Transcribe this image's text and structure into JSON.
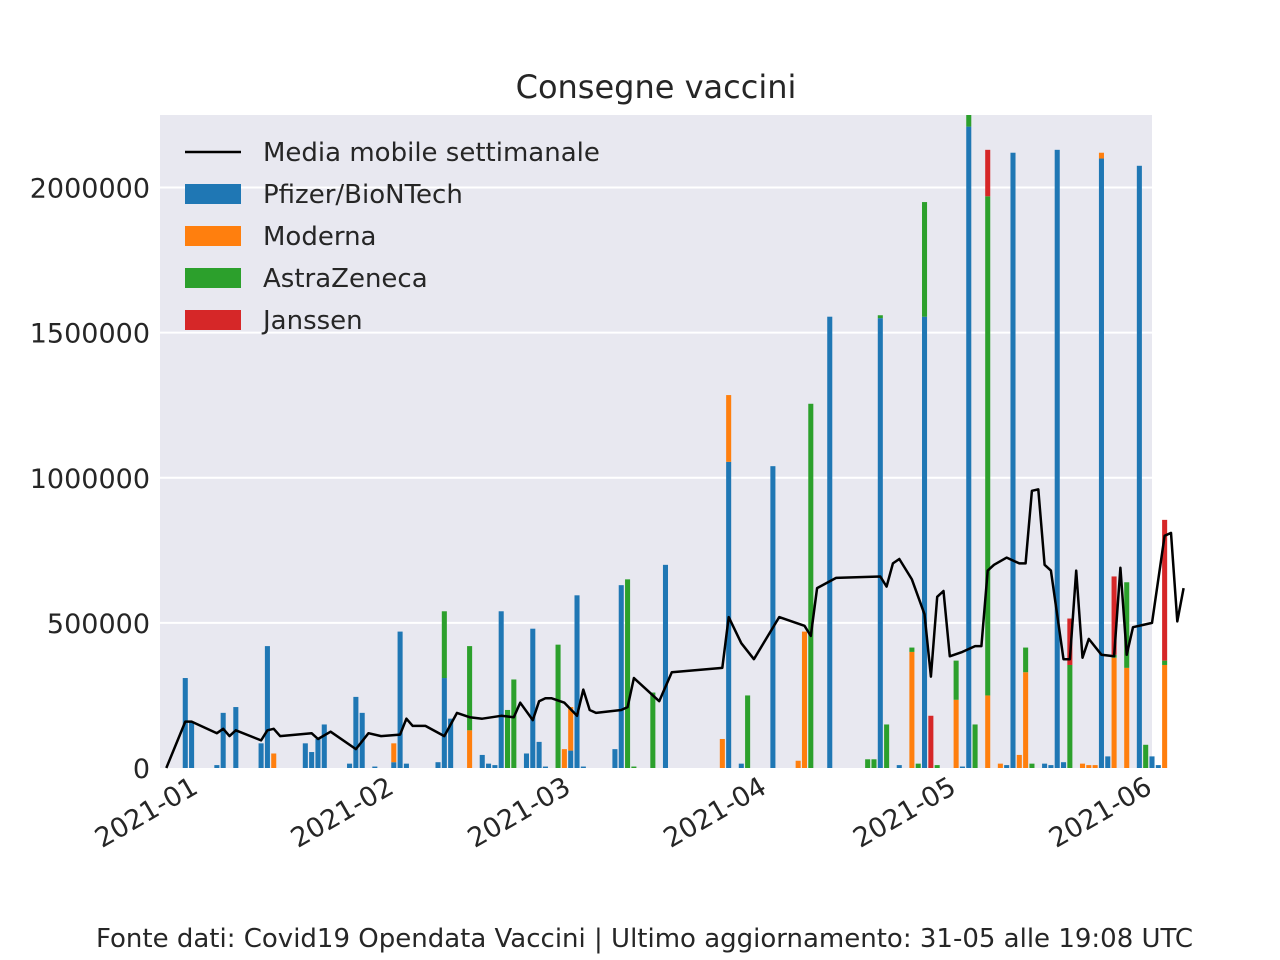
{
  "chart_data": {
    "type": "bar",
    "stacked": true,
    "title": "Consegne vaccini",
    "xlabel": "",
    "ylabel": "",
    "x_start": "2020-12-27",
    "x_end": "2021-06-02",
    "x_ticks": [
      "2021-01-01",
      "2021-02-01",
      "2021-03-01",
      "2021-04-01",
      "2021-05-01",
      "2021-06-01"
    ],
    "x_tick_labels": [
      "2021-01",
      "2021-02",
      "2021-03",
      "2021-04",
      "2021-05",
      "2021-06"
    ],
    "ylim": [
      0,
      2250000
    ],
    "y_ticks": [
      0,
      500000,
      1000000,
      1500000,
      2000000
    ],
    "y_tick_labels": [
      "0",
      "500000",
      "1000000",
      "1500000",
      "2000000"
    ],
    "grid": true,
    "legend_position": "top-left",
    "colors": {
      "Pfizer/BioNTech": "#1f77b4",
      "Moderna": "#ff7f0e",
      "AstraZeneca": "#2ca02c",
      "Janssen": "#d62728",
      "Media mobile settimanale": "#000000",
      "background": "#e8e8f0"
    },
    "legend": [
      {
        "label": "Media mobile settimanale",
        "kind": "line"
      },
      {
        "label": "Pfizer/BioNTech",
        "kind": "bar"
      },
      {
        "label": "Moderna",
        "kind": "bar"
      },
      {
        "label": "AstraZeneca",
        "kind": "bar"
      },
      {
        "label": "Janssen",
        "kind": "bar"
      }
    ],
    "bars": [
      {
        "date": "2020-12-31",
        "Pfizer/BioNTech": 310000
      },
      {
        "date": "2021-01-01",
        "Pfizer/BioNTech": 160000
      },
      {
        "date": "2021-01-05",
        "Pfizer/BioNTech": 10000
      },
      {
        "date": "2021-01-06",
        "Pfizer/BioNTech": 190000
      },
      {
        "date": "2021-01-08",
        "Pfizer/BioNTech": 210000
      },
      {
        "date": "2021-01-12",
        "Pfizer/BioNTech": 85000
      },
      {
        "date": "2021-01-13",
        "Pfizer/BioNTech": 420000
      },
      {
        "date": "2021-01-14",
        "Moderna": 50000
      },
      {
        "date": "2021-01-19",
        "Pfizer/BioNTech": 85000
      },
      {
        "date": "2021-01-20",
        "Pfizer/BioNTech": 55000
      },
      {
        "date": "2021-01-21",
        "Pfizer/BioNTech": 100000
      },
      {
        "date": "2021-01-22",
        "Pfizer/BioNTech": 150000
      },
      {
        "date": "2021-01-26",
        "Pfizer/BioNTech": 15000
      },
      {
        "date": "2021-01-27",
        "Pfizer/BioNTech": 245000
      },
      {
        "date": "2021-01-28",
        "Pfizer/BioNTech": 190000
      },
      {
        "date": "2021-01-30",
        "Pfizer/BioNTech": 5000
      },
      {
        "date": "2021-02-02",
        "Pfizer/BioNTech": 20000,
        "Moderna": 65000
      },
      {
        "date": "2021-02-03",
        "Pfizer/BioNTech": 470000
      },
      {
        "date": "2021-02-04",
        "Pfizer/BioNTech": 15000
      },
      {
        "date": "2021-02-09",
        "Pfizer/BioNTech": 20000
      },
      {
        "date": "2021-02-10",
        "Pfizer/BioNTech": 310000,
        "AstraZeneca": 230000
      },
      {
        "date": "2021-02-11",
        "Pfizer/BioNTech": 170000
      },
      {
        "date": "2021-02-14",
        "Moderna": 130000,
        "AstraZeneca": 290000
      },
      {
        "date": "2021-02-16",
        "Pfizer/BioNTech": 45000
      },
      {
        "date": "2021-02-17",
        "Pfizer/BioNTech": 15000
      },
      {
        "date": "2021-02-18",
        "Pfizer/BioNTech": 10000
      },
      {
        "date": "2021-02-19",
        "Pfizer/BioNTech": 540000
      },
      {
        "date": "2021-02-20",
        "AstraZeneca": 200000
      },
      {
        "date": "2021-02-21",
        "AstraZeneca": 305000
      },
      {
        "date": "2021-02-23",
        "Pfizer/BioNTech": 50000
      },
      {
        "date": "2021-02-24",
        "Pfizer/BioNTech": 480000
      },
      {
        "date": "2021-02-25",
        "Pfizer/BioNTech": 90000
      },
      {
        "date": "2021-02-26",
        "Pfizer/BioNTech": 5000
      },
      {
        "date": "2021-02-28",
        "AstraZeneca": 425000
      },
      {
        "date": "2021-03-01",
        "Moderna": 65000
      },
      {
        "date": "2021-03-02",
        "Pfizer/BioNTech": 60000,
        "Moderna": 150000
      },
      {
        "date": "2021-03-03",
        "Pfizer/BioNTech": 595000
      },
      {
        "date": "2021-03-04",
        "Pfizer/BioNTech": 5000
      },
      {
        "date": "2021-03-09",
        "Pfizer/BioNTech": 65000
      },
      {
        "date": "2021-03-10",
        "Pfizer/BioNTech": 630000
      },
      {
        "date": "2021-03-11",
        "AstraZeneca": 650000
      },
      {
        "date": "2021-03-12",
        "AstraZeneca": 5000
      },
      {
        "date": "2021-03-15",
        "AstraZeneca": 260000
      },
      {
        "date": "2021-03-17",
        "Pfizer/BioNTech": 700000
      },
      {
        "date": "2021-03-26",
        "Moderna": 100000
      },
      {
        "date": "2021-03-27",
        "Pfizer/BioNTech": 1055000,
        "Moderna": 230000
      },
      {
        "date": "2021-03-29",
        "Pfizer/BioNTech": 15000
      },
      {
        "date": "2021-03-30",
        "AstraZeneca": 250000
      },
      {
        "date": "2021-04-03",
        "Pfizer/BioNTech": 1040000
      },
      {
        "date": "2021-04-07",
        "Moderna": 25000
      },
      {
        "date": "2021-04-08",
        "Moderna": 470000
      },
      {
        "date": "2021-04-09",
        "AstraZeneca": 1255000
      },
      {
        "date": "2021-04-12",
        "Pfizer/BioNTech": 1555000
      },
      {
        "date": "2021-04-18",
        "AstraZeneca": 30000
      },
      {
        "date": "2021-04-19",
        "AstraZeneca": 30000
      },
      {
        "date": "2021-04-20",
        "Pfizer/BioNTech": 1550000,
        "AstraZeneca": 10000
      },
      {
        "date": "2021-04-21",
        "AstraZeneca": 150000
      },
      {
        "date": "2021-04-23",
        "Pfizer/BioNTech": 10000
      },
      {
        "date": "2021-04-25",
        "Moderna": 400000,
        "AstraZeneca": 15000
      },
      {
        "date": "2021-04-26",
        "AstraZeneca": 15000
      },
      {
        "date": "2021-04-27",
        "Pfizer/BioNTech": 1555000,
        "AstraZeneca": 395000
      },
      {
        "date": "2021-04-28",
        "Janssen": 180000
      },
      {
        "date": "2021-04-29",
        "AstraZeneca": 10000
      },
      {
        "date": "2021-05-02",
        "Moderna": 235000,
        "AstraZeneca": 135000
      },
      {
        "date": "2021-05-03",
        "Pfizer/BioNTech": 5000
      },
      {
        "date": "2021-05-04",
        "Pfizer/BioNTech": 2210000,
        "AstraZeneca": 40000
      },
      {
        "date": "2021-05-05",
        "AstraZeneca": 150000
      },
      {
        "date": "2021-05-07",
        "Moderna": 250000,
        "AstraZeneca": 1720000,
        "Janssen": 160000
      },
      {
        "date": "2021-05-09",
        "Moderna": 15000
      },
      {
        "date": "2021-05-10",
        "Pfizer/BioNTech": 10000
      },
      {
        "date": "2021-05-11",
        "Pfizer/BioNTech": 2120000
      },
      {
        "date": "2021-05-12",
        "Moderna": 45000
      },
      {
        "date": "2021-05-13",
        "Moderna": 330000,
        "AstraZeneca": 85000
      },
      {
        "date": "2021-05-14",
        "AstraZeneca": 15000
      },
      {
        "date": "2021-05-16",
        "Pfizer/BioNTech": 15000
      },
      {
        "date": "2021-05-17",
        "Pfizer/BioNTech": 10000
      },
      {
        "date": "2021-05-18",
        "Pfizer/BioNTech": 2130000
      },
      {
        "date": "2021-05-19",
        "Pfizer/BioNTech": 20000
      },
      {
        "date": "2021-05-20",
        "AstraZeneca": 355000,
        "Janssen": 160000
      },
      {
        "date": "2021-05-22",
        "Moderna": 15000
      },
      {
        "date": "2021-05-23",
        "Moderna": 10000
      },
      {
        "date": "2021-05-24",
        "Moderna": 10000
      },
      {
        "date": "2021-05-25",
        "Pfizer/BioNTech": 2100000,
        "Moderna": 20000
      },
      {
        "date": "2021-05-26",
        "Pfizer/BioNTech": 40000
      },
      {
        "date": "2021-05-27",
        "Moderna": 380000,
        "AstraZeneca": 10000,
        "Janssen": 270000
      },
      {
        "date": "2021-05-29",
        "Moderna": 345000,
        "AstraZeneca": 295000
      },
      {
        "date": "2021-05-31",
        "Pfizer/BioNTech": 2075000
      },
      {
        "date": "2021-06-01",
        "AstraZeneca": 80000
      },
      {
        "date": "2021-06-02",
        "Pfizer/BioNTech": 40000
      },
      {
        "date": "2021-06-03",
        "Pfizer/BioNTech": 10000
      },
      {
        "date": "2021-06-04",
        "Moderna": 355000,
        "AstraZeneca": 15000,
        "Janssen": 485000
      }
    ],
    "line": {
      "name": "Media mobile settimanale",
      "points": [
        [
          "2020-12-28",
          0
        ],
        [
          "2020-12-31",
          160000
        ],
        [
          "2021-01-01",
          160000
        ],
        [
          "2021-01-05",
          120000
        ],
        [
          "2021-01-06",
          135000
        ],
        [
          "2021-01-07",
          110000
        ],
        [
          "2021-01-08",
          130000
        ],
        [
          "2021-01-12",
          95000
        ],
        [
          "2021-01-13",
          130000
        ],
        [
          "2021-01-14",
          135000
        ],
        [
          "2021-01-15",
          110000
        ],
        [
          "2021-01-20",
          120000
        ],
        [
          "2021-01-21",
          100000
        ],
        [
          "2021-01-23",
          125000
        ],
        [
          "2021-01-27",
          65000
        ],
        [
          "2021-01-29",
          120000
        ],
        [
          "2021-01-31",
          110000
        ],
        [
          "2021-02-03",
          115000
        ],
        [
          "2021-02-04",
          170000
        ],
        [
          "2021-02-05",
          145000
        ],
        [
          "2021-02-07",
          145000
        ],
        [
          "2021-02-10",
          110000
        ],
        [
          "2021-02-12",
          190000
        ],
        [
          "2021-02-14",
          175000
        ],
        [
          "2021-02-16",
          170000
        ],
        [
          "2021-02-19",
          180000
        ],
        [
          "2021-02-21",
          175000
        ],
        [
          "2021-02-22",
          225000
        ],
        [
          "2021-02-24",
          165000
        ],
        [
          "2021-02-25",
          230000
        ],
        [
          "2021-02-26",
          240000
        ],
        [
          "2021-02-27",
          240000
        ],
        [
          "2021-03-01",
          225000
        ],
        [
          "2021-03-03",
          180000
        ],
        [
          "2021-03-04",
          270000
        ],
        [
          "2021-03-05",
          200000
        ],
        [
          "2021-03-06",
          190000
        ],
        [
          "2021-03-10",
          200000
        ],
        [
          "2021-03-11",
          210000
        ],
        [
          "2021-03-12",
          310000
        ],
        [
          "2021-03-14",
          270000
        ],
        [
          "2021-03-16",
          230000
        ],
        [
          "2021-03-18",
          330000
        ],
        [
          "2021-03-26",
          345000
        ],
        [
          "2021-03-27",
          520000
        ],
        [
          "2021-03-29",
          430000
        ],
        [
          "2021-03-31",
          375000
        ],
        [
          "2021-04-04",
          520000
        ],
        [
          "2021-04-08",
          490000
        ],
        [
          "2021-04-09",
          455000
        ],
        [
          "2021-04-10",
          620000
        ],
        [
          "2021-04-13",
          655000
        ],
        [
          "2021-04-20",
          660000
        ],
        [
          "2021-04-21",
          625000
        ],
        [
          "2021-04-22",
          705000
        ],
        [
          "2021-04-23",
          720000
        ],
        [
          "2021-04-25",
          650000
        ],
        [
          "2021-04-27",
          530000
        ],
        [
          "2021-04-28",
          315000
        ],
        [
          "2021-04-29",
          590000
        ],
        [
          "2021-04-30",
          610000
        ],
        [
          "2021-05-01",
          385000
        ],
        [
          "2021-05-03",
          400000
        ],
        [
          "2021-05-05",
          420000
        ],
        [
          "2021-05-06",
          420000
        ],
        [
          "2021-05-07",
          680000
        ],
        [
          "2021-05-08",
          700000
        ],
        [
          "2021-05-10",
          725000
        ],
        [
          "2021-05-12",
          705000
        ],
        [
          "2021-05-13",
          705000
        ],
        [
          "2021-05-14",
          955000
        ],
        [
          "2021-05-15",
          960000
        ],
        [
          "2021-05-16",
          700000
        ],
        [
          "2021-05-17",
          680000
        ],
        [
          "2021-05-19",
          375000
        ],
        [
          "2021-05-20",
          375000
        ],
        [
          "2021-05-21",
          680000
        ],
        [
          "2021-05-22",
          380000
        ],
        [
          "2021-05-23",
          445000
        ],
        [
          "2021-05-25",
          390000
        ],
        [
          "2021-05-27",
          385000
        ],
        [
          "2021-05-28",
          690000
        ],
        [
          "2021-05-29",
          390000
        ],
        [
          "2021-05-30",
          485000
        ],
        [
          "2021-06-02",
          500000
        ],
        [
          "2021-06-04",
          800000
        ],
        [
          "2021-06-05",
          810000
        ],
        [
          "2021-06-06",
          505000
        ],
        [
          "2021-06-07",
          620000
        ]
      ]
    }
  },
  "footer": "Fonte dati: Covid19 Opendata Vaccini | Ultimo aggiornamento: 31-05 alle 19:08 UTC"
}
